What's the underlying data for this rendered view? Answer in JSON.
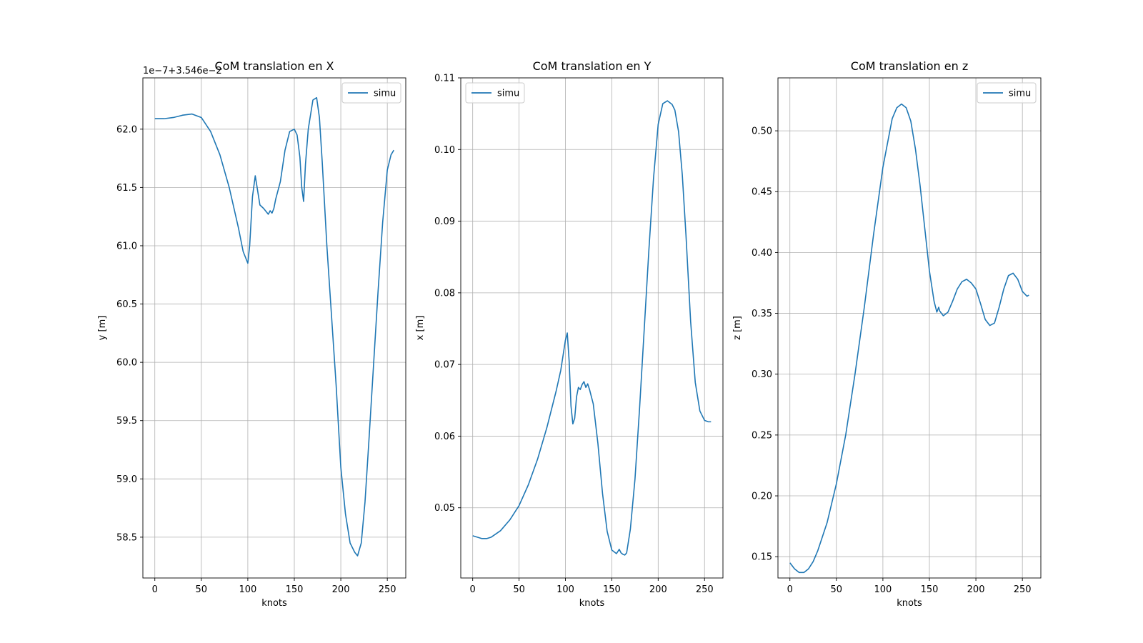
{
  "figure": {
    "background": "#ffffff",
    "line_color": "#1f77b4",
    "grid_color": "#b0b0b0"
  },
  "chart_data": [
    {
      "type": "line",
      "title": "CoM translation en X",
      "xlabel": "knots",
      "ylabel": "y [m]",
      "offset_text": "1e−7+3.546e−2",
      "xlim": [
        -12.85,
        269.85
      ],
      "ylim": [
        58.15,
        62.44
      ],
      "xticks": [
        0,
        50,
        100,
        150,
        200,
        250
      ],
      "xtick_labels": [
        "0",
        "50",
        "100",
        "150",
        "200",
        "250"
      ],
      "yticks": [
        58.5,
        59.0,
        59.5,
        60.0,
        60.5,
        61.0,
        61.5,
        62.0
      ],
      "ytick_labels": [
        "58.5",
        "59.0",
        "59.5",
        "60.0",
        "60.5",
        "61.0",
        "61.5",
        "62.0"
      ],
      "grid": true,
      "legend_position": "upper right",
      "series": [
        {
          "name": "simu",
          "x": [
            0,
            10,
            20,
            30,
            40,
            50,
            60,
            70,
            80,
            90,
            95,
            100,
            102,
            105,
            108,
            110,
            113,
            117,
            120,
            122,
            124,
            126,
            128,
            130,
            135,
            140,
            145,
            150,
            153,
            156,
            158,
            160,
            162,
            165,
            170,
            174,
            177,
            180,
            185,
            190,
            195,
            200,
            205,
            210,
            215,
            218,
            222,
            226,
            230,
            235,
            240,
            245,
            250,
            254,
            257
          ],
          "y": [
            62.09,
            62.09,
            62.1,
            62.12,
            62.13,
            62.1,
            61.98,
            61.78,
            61.5,
            61.15,
            60.95,
            60.85,
            61.0,
            61.42,
            61.6,
            61.5,
            61.35,
            61.32,
            61.29,
            61.27,
            61.3,
            61.28,
            61.32,
            61.4,
            61.55,
            61.82,
            61.98,
            62.0,
            61.95,
            61.76,
            61.5,
            61.38,
            61.7,
            62.0,
            62.25,
            62.27,
            62.1,
            61.72,
            61.0,
            60.4,
            59.8,
            59.1,
            58.7,
            58.45,
            58.37,
            58.34,
            58.45,
            58.8,
            59.3,
            59.95,
            60.6,
            61.2,
            61.65,
            61.78,
            61.82
          ]
        }
      ]
    },
    {
      "type": "line",
      "title": "CoM translation en Y",
      "xlabel": "knots",
      "ylabel": "x [m]",
      "offset_text": "",
      "xlim": [
        -12.85,
        269.85
      ],
      "ylim": [
        0.0402,
        0.11
      ],
      "xticks": [
        0,
        50,
        100,
        150,
        200,
        250
      ],
      "xtick_labels": [
        "0",
        "50",
        "100",
        "150",
        "200",
        "250"
      ],
      "yticks": [
        0.05,
        0.06,
        0.07,
        0.08,
        0.09,
        0.1,
        0.11
      ],
      "ytick_labels": [
        "0.05",
        "0.06",
        "0.07",
        "0.08",
        "0.09",
        "0.10",
        "0.11"
      ],
      "grid": true,
      "legend_position": "upper left",
      "series": [
        {
          "name": "simu",
          "x": [
            0,
            5,
            10,
            15,
            20,
            30,
            40,
            50,
            60,
            70,
            80,
            90,
            95,
            100,
            102,
            104,
            106,
            108,
            110,
            112,
            114,
            116,
            118,
            120,
            122,
            124,
            126,
            128,
            130,
            135,
            140,
            145,
            150,
            155,
            158,
            160,
            162,
            164,
            166,
            170,
            175,
            180,
            185,
            190,
            195,
            200,
            205,
            210,
            215,
            218,
            222,
            226,
            230,
            235,
            240,
            245,
            250,
            254,
            257
          ],
          "y": [
            0.0461,
            0.0459,
            0.0457,
            0.0457,
            0.0459,
            0.0468,
            0.0483,
            0.0503,
            0.0532,
            0.0568,
            0.0612,
            0.0663,
            0.0692,
            0.0734,
            0.0744,
            0.0705,
            0.0642,
            0.0617,
            0.0625,
            0.0655,
            0.0668,
            0.0665,
            0.0672,
            0.0676,
            0.0668,
            0.0673,
            0.0665,
            0.0655,
            0.0645,
            0.059,
            0.052,
            0.0467,
            0.0441,
            0.0436,
            0.0442,
            0.0437,
            0.0435,
            0.0434,
            0.0437,
            0.047,
            0.054,
            0.064,
            0.075,
            0.086,
            0.096,
            0.1035,
            0.1064,
            0.1068,
            0.1063,
            0.1055,
            0.1025,
            0.0965,
            0.088,
            0.076,
            0.0675,
            0.0635,
            0.0622,
            0.062,
            0.062
          ]
        }
      ]
    },
    {
      "type": "line",
      "title": "CoM translation en z",
      "xlabel": "knots",
      "ylabel": "z [m]",
      "offset_text": "",
      "xlim": [
        -12.85,
        269.85
      ],
      "ylim": [
        0.1325,
        0.5435
      ],
      "xticks": [
        0,
        50,
        100,
        150,
        200,
        250
      ],
      "xtick_labels": [
        "0",
        "50",
        "100",
        "150",
        "200",
        "250"
      ],
      "yticks": [
        0.15,
        0.2,
        0.25,
        0.3,
        0.35,
        0.4,
        0.45,
        0.5
      ],
      "ytick_labels": [
        "0.15",
        "0.20",
        "0.25",
        "0.30",
        "0.35",
        "0.40",
        "0.45",
        "0.50"
      ],
      "grid": true,
      "legend_position": "upper right",
      "series": [
        {
          "name": "simu",
          "x": [
            0,
            5,
            10,
            15,
            20,
            25,
            30,
            40,
            50,
            60,
            70,
            80,
            90,
            100,
            110,
            115,
            120,
            125,
            130,
            135,
            140,
            145,
            150,
            155,
            158,
            160,
            161,
            162,
            165,
            170,
            175,
            180,
            185,
            190,
            195,
            200,
            205,
            210,
            215,
            220,
            225,
            230,
            235,
            240,
            245,
            250,
            255,
            257
          ],
          "y": [
            0.145,
            0.14,
            0.137,
            0.137,
            0.14,
            0.146,
            0.155,
            0.178,
            0.21,
            0.25,
            0.3,
            0.355,
            0.415,
            0.47,
            0.51,
            0.519,
            0.522,
            0.519,
            0.508,
            0.485,
            0.455,
            0.42,
            0.385,
            0.36,
            0.351,
            0.355,
            0.352,
            0.351,
            0.348,
            0.351,
            0.36,
            0.37,
            0.376,
            0.378,
            0.375,
            0.37,
            0.358,
            0.345,
            0.34,
            0.342,
            0.355,
            0.37,
            0.381,
            0.383,
            0.378,
            0.368,
            0.364,
            0.365
          ]
        }
      ]
    }
  ]
}
